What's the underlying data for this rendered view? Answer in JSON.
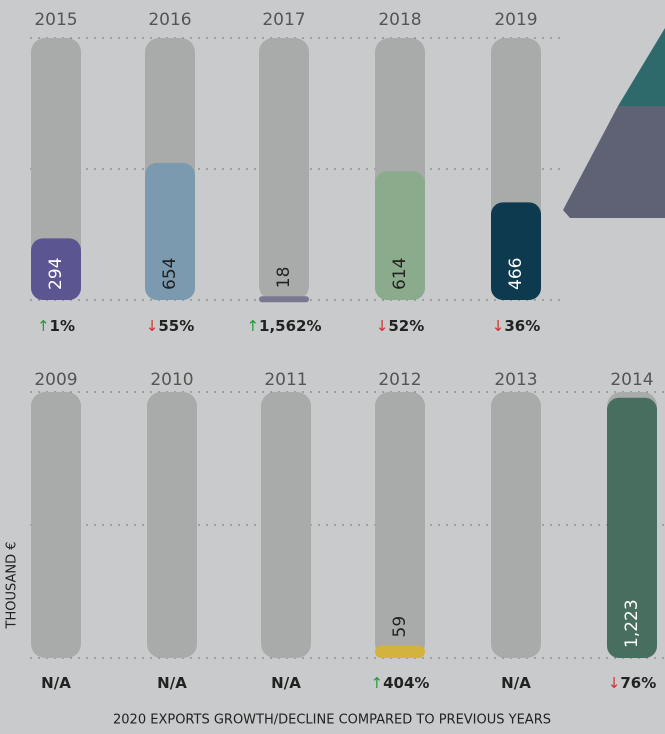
{
  "chart_data": [
    {
      "type": "bar",
      "categories": [
        "2015",
        "2016",
        "2017",
        "2018",
        "2019"
      ],
      "values": [
        294,
        654,
        18,
        614,
        466
      ],
      "value_labels": [
        "294",
        "654",
        "18",
        "614",
        "466"
      ],
      "colors": [
        "#5b5591",
        "#7b9ab0",
        "#7a7890",
        "#8aab8c",
        "#0e3a50"
      ],
      "change_values": [
        1,
        -55,
        1562,
        -52,
        -36
      ],
      "change_labels": [
        "1%",
        "55%",
        "1,562%",
        "52%",
        "36%"
      ],
      "ylim": [
        0,
        1250
      ]
    },
    {
      "type": "bar",
      "categories": [
        "2009",
        "2010",
        "2011",
        "2012",
        "2013",
        "2014"
      ],
      "values": [
        null,
        null,
        null,
        59,
        null,
        1223
      ],
      "value_labels": [
        null,
        null,
        null,
        "59",
        null,
        "1,223"
      ],
      "colors": [
        null,
        null,
        null,
        "#d4b23e",
        null,
        "#476e5e"
      ],
      "change_values": [
        null,
        null,
        null,
        404,
        null,
        -76
      ],
      "change_labels": [
        "N/A",
        "N/A",
        "N/A",
        "404%",
        "N/A",
        "76%"
      ],
      "ylim": [
        0,
        1250
      ],
      "y_label": "THOUSAND €"
    }
  ],
  "caption": "2020 EXPORTS GROWTH/DECLINE COMPARED TO PREVIOUS YEARS"
}
